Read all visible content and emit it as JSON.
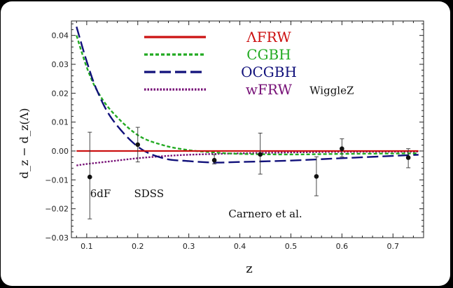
{
  "chart_data": {
    "type": "line",
    "xlabel": "z",
    "ylabel": "d_z − d_z(Λ)",
    "xlim": [
      0.07,
      0.76
    ],
    "ylim": [
      -0.03,
      0.045
    ],
    "x_ticks": [
      "0.1",
      "0.2",
      "0.3",
      "0.4",
      "0.5",
      "0.6",
      "0.7"
    ],
    "y_ticks": [
      "0.04",
      "0.03",
      "0.02",
      "0.01",
      "0.00",
      "−0.01",
      "−0.02",
      "−0.03"
    ],
    "legend": {
      "position": "top-left",
      "entries": [
        {
          "label": "ΛFRW",
          "color": "#cc1111",
          "dash": "solid"
        },
        {
          "label": "CGBH",
          "color": "#22aa22",
          "dash": "short-dash"
        },
        {
          "label": "OCGBH",
          "color": "#10107a",
          "dash": "long-dash"
        },
        {
          "label": "wFRW",
          "color": "#771177",
          "dash": "dotted"
        }
      ]
    },
    "series": [
      {
        "name": "ΛFRW",
        "color": "#cc1111",
        "x": [
          0.08,
          0.75
        ],
        "y": [
          0.0,
          0.0
        ]
      },
      {
        "name": "CGBH",
        "color": "#22aa22",
        "x": [
          0.08,
          0.1,
          0.12,
          0.15,
          0.2,
          0.25,
          0.3,
          0.35,
          0.4,
          0.5,
          0.6,
          0.75
        ],
        "y": [
          0.04,
          0.029,
          0.021,
          0.0135,
          0.0055,
          0.002,
          0.0003,
          -0.0005,
          -0.001,
          -0.0012,
          -0.001,
          -0.0008
        ]
      },
      {
        "name": "OCGBH",
        "color": "#10107a",
        "x": [
          0.08,
          0.1,
          0.12,
          0.15,
          0.2,
          0.25,
          0.3,
          0.35,
          0.4,
          0.5,
          0.6,
          0.75
        ],
        "y": [
          0.043,
          0.031,
          0.021,
          0.011,
          0.0015,
          -0.0025,
          -0.0035,
          -0.004,
          -0.0038,
          -0.0033,
          -0.0025,
          -0.0013
        ]
      },
      {
        "name": "wFRW",
        "color": "#771177",
        "x": [
          0.08,
          0.1,
          0.15,
          0.2,
          0.25,
          0.3,
          0.4,
          0.5,
          0.6,
          0.75
        ],
        "y": [
          -0.005,
          -0.0045,
          -0.0035,
          -0.0025,
          -0.0018,
          -0.0013,
          -0.0008,
          -0.0005,
          -0.0003,
          -0.0002
        ]
      }
    ],
    "data_points": [
      {
        "label": "6dF",
        "x": 0.106,
        "y": -0.009,
        "yerr_low": -0.0235,
        "yerr_high": 0.0065
      },
      {
        "label": "SDSS",
        "x": 0.2,
        "y": 0.0022,
        "yerr_low": -0.0038,
        "yerr_high": 0.0082
      },
      {
        "label": "Carnero et al.",
        "x": 0.35,
        "y": -0.0032,
        "yerr_low": -0.0045,
        "yerr_high": -0.0013
      },
      {
        "label": "WiggleZ",
        "x": 0.44,
        "y": -0.0012,
        "yerr_low": -0.008,
        "yerr_high": 0.0062
      },
      {
        "label": "WiggleZ",
        "x": 0.55,
        "y": -0.0088,
        "yerr_low": -0.0155,
        "yerr_high": -0.002
      },
      {
        "label": "WiggleZ",
        "x": 0.6,
        "y": 0.0008,
        "yerr_low": -0.002,
        "yerr_high": 0.0042
      },
      {
        "label": "WiggleZ",
        "x": 0.73,
        "y": -0.0023,
        "yerr_low": -0.0058,
        "yerr_high": 0.0008
      }
    ],
    "annotations": [
      {
        "text": "6dF",
        "x": 0.127,
        "y": -0.016
      },
      {
        "text": "SDSS",
        "x": 0.222,
        "y": -0.016
      },
      {
        "text": "Carnero et al.",
        "x": 0.45,
        "y": -0.023
      },
      {
        "text": "WiggleZ",
        "x": 0.58,
        "y": 0.0197
      }
    ],
    "grid": false
  }
}
